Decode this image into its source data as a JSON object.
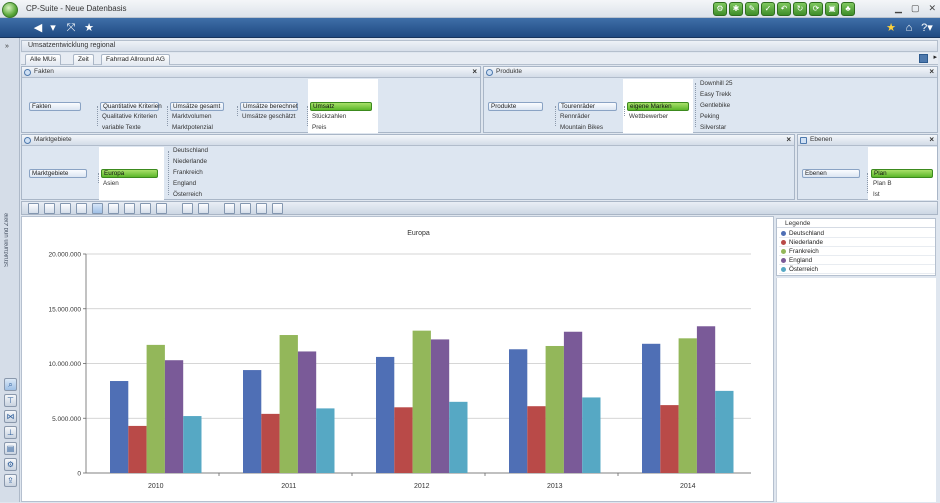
{
  "window": {
    "title": "CP-Suite - Neue Datenbasis"
  },
  "breadcrumb": "Umsatzentwicklung regional",
  "tabs": [
    "Alle MUs",
    "Zeit",
    "Fahrrad Allround AG"
  ],
  "facts_panel": {
    "title": "Fakten",
    "root": "Fakten",
    "level1": [
      "Quantitative Kriterien",
      "Qualitative Kriterien",
      "variable Texte"
    ],
    "level2": [
      "Umsätze gesamt",
      "Marktvolumen",
      "Marktpotenzial"
    ],
    "level3": [
      "Umsätze berechnet",
      "Umsätze geschätzt"
    ],
    "level4": [
      "Umsatz",
      "Stückzahlen",
      "Preis"
    ]
  },
  "products_panel": {
    "title": "Produkte",
    "root": "Produkte",
    "level1": [
      "Tourenräder",
      "Rennräder",
      "Mountain Bikes"
    ],
    "level2": [
      "eigene Marken",
      "Wettbewerber"
    ],
    "level3": [
      "Downhill 25",
      "Easy Trekk",
      "Gentlebike",
      "Peking",
      "Silverstar"
    ]
  },
  "markets_panel": {
    "title": "Marktgebiete",
    "root": "Marktgebiete",
    "level1": [
      "Europa",
      "Asien"
    ],
    "level2": [
      "Deutschland",
      "Niederlande",
      "Frankreich",
      "England",
      "Österreich"
    ]
  },
  "levels_panel": {
    "title": "Ebenen",
    "root": "Ebenen",
    "level1": [
      "Plan",
      "Plan B",
      "Ist"
    ]
  },
  "side_label": "Strukturen und Ziele",
  "legend": {
    "title": "Legende"
  },
  "colors": {
    "accent": "#1f4a82",
    "selected": "#5bb62a"
  },
  "chart_data": {
    "type": "bar",
    "title": "Europa",
    "categories": [
      "2010",
      "2011",
      "2012",
      "2013",
      "2014"
    ],
    "yticks": [
      "0",
      "5.000.000",
      "10.000.000",
      "15.000.000",
      "20.000.000"
    ],
    "ylim": [
      0,
      20000000
    ],
    "series": [
      {
        "name": "Deutschland",
        "color": "#4f6fb5",
        "values": [
          8400000,
          9400000,
          10600000,
          11300000,
          11800000
        ]
      },
      {
        "name": "Niederlande",
        "color": "#b94a48",
        "values": [
          4300000,
          5400000,
          6000000,
          6100000,
          6200000
        ]
      },
      {
        "name": "Frankreich",
        "color": "#93b75a",
        "values": [
          11700000,
          12600000,
          13000000,
          11600000,
          12300000
        ]
      },
      {
        "name": "England",
        "color": "#7a5a98",
        "values": [
          10300000,
          11100000,
          12200000,
          12900000,
          13400000
        ]
      },
      {
        "name": "Österreich",
        "color": "#56a8c4",
        "values": [
          5200000,
          5900000,
          6500000,
          6900000,
          7500000
        ]
      }
    ]
  }
}
